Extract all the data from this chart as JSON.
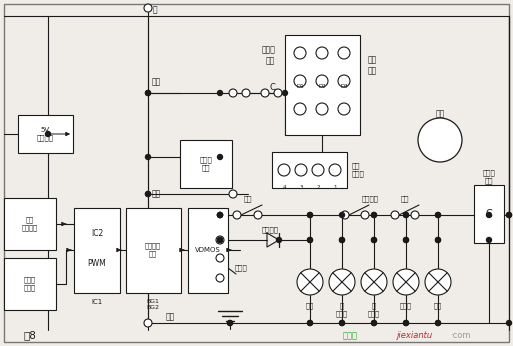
{
  "bg": "#f0ede8",
  "lc": "#1a1a1a",
  "border": "#777777",
  "figsize": [
    5.13,
    3.46
  ],
  "dpi": 100,
  "fig8": "图8",
  "wm1": "接线图",
  "wm1c": "#22aa22",
  "wm2": "jiexiantu",
  "wm2c": "#cc2222",
  "wm3": "·com",
  "wm3c": "#999999",
  "labels": {
    "yellow": "黄",
    "phase_red": "相红",
    "phase_green": "相绿",
    "phase_black": "相黑",
    "v5": "5V\n稳压电源",
    "bridge": "整流桥\n续流",
    "optic": "光电\n速度转把",
    "triangle": "三角波\n发生器",
    "ic2pwm": "IC2\n\nPWM",
    "two_stage": "两级倒相\n驱动",
    "vdmos": "VDMOS",
    "ic1": "IC1",
    "bg12": "BG1\nBG2",
    "contactor_head": "接触器\n触头",
    "to_limit": "到原\n开关",
    "motor_term": "电机\n接线柱",
    "motor": "电机",
    "contactor_coil_lbl": "接触器\n线圈",
    "coil_c": "C",
    "normally_open1": "常开",
    "travel_switch": "行程开关",
    "normally_open2": "常开",
    "key_switch": "锁匙开关",
    "master_switch": "总开关",
    "c_label": "C",
    "d1": "D1",
    "d2": "D2",
    "d3": "D3",
    "loads": [
      "大灯",
      "左\n转向灯",
      "右\n转向灯",
      "刹车灯",
      "喇叭"
    ]
  }
}
